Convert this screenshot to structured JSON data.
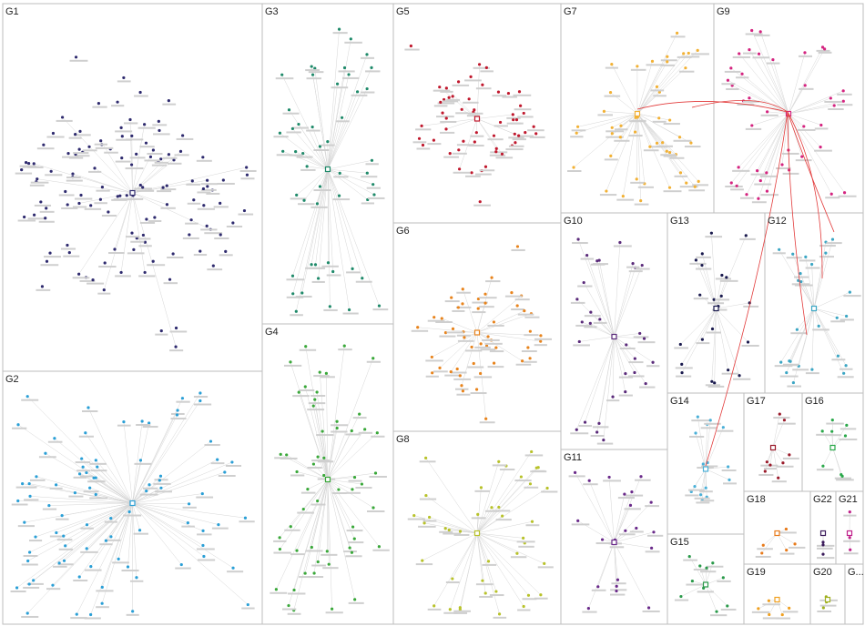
{
  "title": "",
  "groups": [
    {
      "label": "G1",
      "color": "#2e2a6e"
    },
    {
      "label": "G2",
      "color": "#2a9fd6"
    },
    {
      "label": "G3",
      "color": "#1f8a6a"
    },
    {
      "label": "G4",
      "color": "#3aa83a"
    },
    {
      "label": "G5",
      "color": "#c0182d"
    },
    {
      "label": "G6",
      "color": "#e8841d"
    },
    {
      "label": "G7",
      "color": "#f2b134"
    },
    {
      "label": "G8",
      "color": "#b8c22a"
    },
    {
      "label": "G9",
      "color": "#d4237f"
    },
    {
      "label": "G10",
      "color": "#5a2a7a"
    },
    {
      "label": "G11",
      "color": "#6a2a8a"
    },
    {
      "label": "G12",
      "color": "#3ba6c4"
    },
    {
      "label": "G13",
      "color": "#1a1a4e"
    },
    {
      "label": "G14",
      "color": "#4ab0d8"
    },
    {
      "label": "G15",
      "color": "#2a9a4a"
    },
    {
      "label": "G16",
      "color": "#2aa84a"
    },
    {
      "label": "G17",
      "color": "#9a1a2a"
    },
    {
      "label": "G18",
      "color": "#e87a1a"
    },
    {
      "label": "G19",
      "color": "#f0a020"
    },
    {
      "label": "G20",
      "color": "#a0b020"
    },
    {
      "label": "G21",
      "color": "#c0208a"
    },
    {
      "label": "G22",
      "color": "#3a1a5a"
    },
    {
      "label": "G..."
    }
  ]
}
